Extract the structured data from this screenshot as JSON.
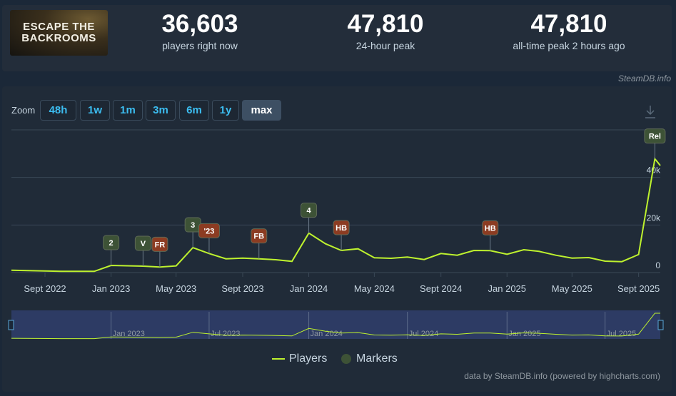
{
  "game": {
    "logo_line1": "ESCAPE THE",
    "logo_line2": "BACKROOMS"
  },
  "stats": [
    {
      "value": "36,603",
      "label": "players right now"
    },
    {
      "value": "47,810",
      "label": "24-hour peak"
    },
    {
      "value": "47,810",
      "label": "all-time peak 2 hours ago"
    }
  ],
  "credit_top": "SteamDB.info",
  "zoom": {
    "label": "Zoom",
    "options": [
      "48h",
      "1w",
      "1m",
      "3m",
      "6m",
      "1y",
      "max"
    ],
    "active": "max"
  },
  "credit_bottom": "data by SteamDB.info (powered by highcharts.com)",
  "chart_data": {
    "type": "line",
    "series": [
      {
        "name": "Players",
        "x": [
          "2022-07-01",
          "2022-10-01",
          "2022-12-01",
          "2023-01-01",
          "2023-03-01",
          "2023-04-01",
          "2023-05-01",
          "2023-06-01",
          "2023-07-01",
          "2023-08-01",
          "2023-09-01",
          "2023-10-01",
          "2023-11-01",
          "2023-12-01",
          "2024-01-01",
          "2024-02-01",
          "2024-03-01",
          "2024-04-01",
          "2024-05-01",
          "2024-06-01",
          "2024-07-01",
          "2024-08-01",
          "2024-09-01",
          "2024-10-01",
          "2024-11-01",
          "2024-12-01",
          "2025-01-01",
          "2025-02-01",
          "2025-03-01",
          "2025-04-01",
          "2025-05-01",
          "2025-06-01",
          "2025-07-01",
          "2025-08-01",
          "2025-09-01",
          "2025-10-01",
          "2025-10-11"
        ],
        "y": [
          1000,
          500,
          500,
          3000,
          2700,
          2300,
          2800,
          10500,
          8000,
          5800,
          6100,
          5800,
          5400,
          4700,
          16600,
          12100,
          9300,
          10000,
          6200,
          6000,
          6500,
          5500,
          8000,
          7300,
          9300,
          9200,
          7700,
          9600,
          8900,
          7300,
          6100,
          6300,
          4800,
          4600,
          7600,
          47810,
          45000
        ]
      },
      {
        "name": "Markers",
        "values": []
      }
    ],
    "markers": [
      {
        "label": "2",
        "date": "2023-01-01",
        "kind": "update"
      },
      {
        "label": "V",
        "date": "2023-03-01",
        "kind": "update"
      },
      {
        "label": "FR",
        "date": "2023-04-01",
        "kind": "event"
      },
      {
        "label": "3",
        "date": "2023-06-01",
        "kind": "update"
      },
      {
        "label": "'23",
        "date": "2023-07-01",
        "kind": "event"
      },
      {
        "label": "FB",
        "date": "2023-10-01",
        "kind": "event"
      },
      {
        "label": "4",
        "date": "2024-01-01",
        "kind": "update"
      },
      {
        "label": "HB",
        "date": "2024-03-01",
        "kind": "event"
      },
      {
        "label": "HB",
        "date": "2024-12-01",
        "kind": "event"
      },
      {
        "label": "Rel",
        "date": "2025-10-01",
        "kind": "update"
      }
    ],
    "x_ticks": [
      "Sept 2022",
      "Jan 2023",
      "May 2023",
      "Sept 2023",
      "Jan 2024",
      "May 2024",
      "Sept 2024",
      "Jan 2025",
      "May 2025",
      "Sept 2025"
    ],
    "y_ticks": [
      "0",
      "20k",
      "40k"
    ],
    "ylim": [
      0,
      60000
    ],
    "navigator_ticks": [
      "Jan 2023",
      "Jul 2023",
      "Jan 2024",
      "Jul 2024",
      "Jan 2025",
      "Jul 2025"
    ],
    "grid": true,
    "legend_position": "bottom"
  },
  "legend": {
    "players_label": "Players",
    "markers_label": "Markers"
  },
  "colors": {
    "line": "#bef22e",
    "update_marker": "#3d5236",
    "event_marker": "#8c3c22",
    "navigator_bg": "#2d3b64"
  }
}
